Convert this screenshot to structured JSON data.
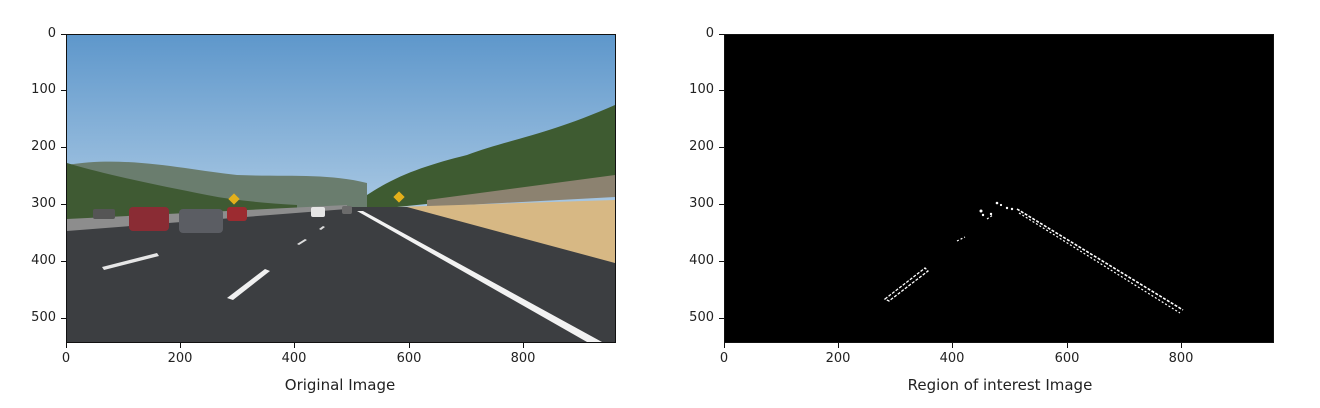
{
  "figure": {
    "panels": [
      {
        "xlabel": "Original Image",
        "x_ticks": [
          "0",
          "200",
          "400",
          "600",
          "800"
        ],
        "y_ticks": [
          "0",
          "100",
          "200",
          "300",
          "400",
          "500"
        ]
      },
      {
        "xlabel": "Region of interest Image",
        "x_ticks": [
          "0",
          "200",
          "400",
          "600",
          "800"
        ],
        "y_ticks": [
          "0",
          "100",
          "200",
          "300",
          "400",
          "500"
        ]
      }
    ]
  },
  "colors": {
    "sky": "#6fa3d0",
    "road": "#3b3d40",
    "grass": "#d8b884",
    "trees": "#3d5a32",
    "mask_bg": "#000000",
    "edge_lines": "#ffffff"
  }
}
